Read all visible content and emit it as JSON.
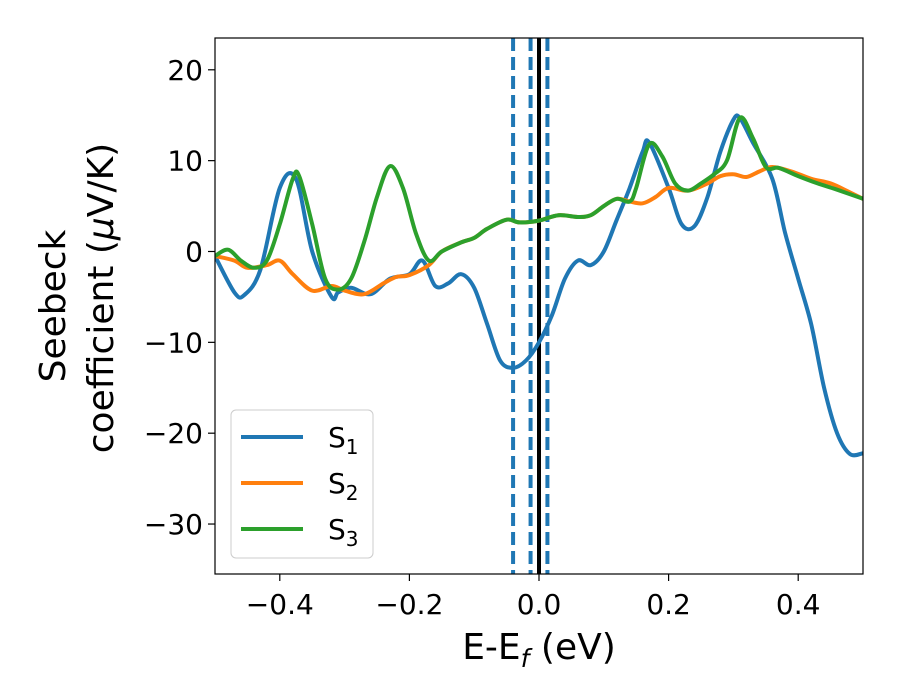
{
  "chart_data": {
    "type": "line",
    "title": "",
    "xlabel": {
      "main": "E-E",
      "sub": "f",
      "suffix": " (eV)"
    },
    "ylabel": {
      "line1": "Seebeck",
      "line2": "coefficient  (",
      "mu": "μ",
      "line2_suffix": "V/K)"
    },
    "xlim": [
      -0.5,
      0.5
    ],
    "ylim": [
      -35.5,
      23.5
    ],
    "xticks": [
      -0.4,
      -0.2,
      0.0,
      0.2,
      0.4
    ],
    "xtick_labels": [
      "−0.4",
      "−0.2",
      "0.0",
      "0.2",
      "0.4"
    ],
    "yticks": [
      20,
      10,
      0,
      -10,
      -20,
      -30
    ],
    "ytick_labels": [
      "20",
      "10",
      "0",
      "−10",
      "−20",
      "−30"
    ],
    "grid": false,
    "legend_position": "lower-left",
    "vlines": [
      {
        "x": 0.0,
        "style": "solid",
        "color": "#000000"
      },
      {
        "x": -0.04,
        "style": "dashed",
        "color": "#1f77b4"
      },
      {
        "x": -0.013,
        "style": "dashed",
        "color": "#1f77b4"
      },
      {
        "x": 0.013,
        "style": "dashed",
        "color": "#1f77b4"
      }
    ],
    "series": [
      {
        "name": "S",
        "subscript": "1",
        "color": "#1f77b4",
        "x": [
          -0.5,
          -0.47,
          -0.455,
          -0.43,
          -0.4,
          -0.375,
          -0.35,
          -0.32,
          -0.31,
          -0.29,
          -0.26,
          -0.23,
          -0.2,
          -0.18,
          -0.16,
          -0.14,
          -0.12,
          -0.1,
          -0.08,
          -0.06,
          -0.04,
          -0.02,
          0.0,
          0.02,
          0.04,
          0.06,
          0.08,
          0.1,
          0.12,
          0.14,
          0.16,
          0.17,
          0.2,
          0.22,
          0.24,
          0.26,
          0.28,
          0.3,
          0.31,
          0.33,
          0.36,
          0.38,
          0.4,
          0.42,
          0.44,
          0.46,
          0.48,
          0.5
        ],
        "values": [
          -0.5,
          -4.5,
          -4.8,
          -2,
          7,
          8,
          0,
          -5,
          -4.5,
          -4,
          -4.7,
          -3,
          -2.5,
          -1,
          -3.8,
          -3.5,
          -2.5,
          -4,
          -8,
          -12,
          -12.8,
          -12,
          -10,
          -7,
          -3,
          -1,
          -1.5,
          0,
          3.5,
          7,
          11,
          12,
          7,
          3,
          2.8,
          6,
          11,
          14.5,
          14.7,
          12,
          8,
          2,
          -3,
          -8,
          -15,
          -20,
          -22.3,
          -22.2
        ]
      },
      {
        "name": "S",
        "subscript": "2",
        "color": "#ff7f0e",
        "x": [
          -0.5,
          -0.47,
          -0.45,
          -0.42,
          -0.4,
          -0.38,
          -0.35,
          -0.32,
          -0.3,
          -0.27,
          -0.24,
          -0.22,
          -0.2,
          -0.17,
          -0.15,
          -0.12,
          -0.1,
          -0.08,
          -0.05,
          -0.03,
          0.0,
          0.03,
          0.06,
          0.08,
          0.1,
          0.12,
          0.14,
          0.16,
          0.18,
          0.2,
          0.23,
          0.26,
          0.28,
          0.3,
          0.32,
          0.34,
          0.36,
          0.39,
          0.42,
          0.45,
          0.48,
          0.5
        ],
        "values": [
          -0.5,
          -1,
          -1.8,
          -1.5,
          -1,
          -2.5,
          -4.3,
          -3.8,
          -4.3,
          -4.7,
          -3.5,
          -2.8,
          -2.6,
          -1.5,
          0,
          1,
          1.5,
          2.5,
          3.5,
          3.2,
          3.4,
          4,
          3.8,
          4,
          5,
          5.8,
          5.5,
          5.3,
          6,
          7,
          6.7,
          7.5,
          8.3,
          8.5,
          8.2,
          8.8,
          9.3,
          8.8,
          8,
          7.5,
          6.5,
          5.8
        ]
      },
      {
        "name": "S",
        "subscript": "3",
        "color": "#2ca02c",
        "x": [
          -0.5,
          -0.48,
          -0.46,
          -0.44,
          -0.42,
          -0.4,
          -0.38,
          -0.37,
          -0.35,
          -0.33,
          -0.31,
          -0.29,
          -0.27,
          -0.25,
          -0.23,
          -0.21,
          -0.19,
          -0.17,
          -0.15,
          -0.12,
          -0.1,
          -0.08,
          -0.05,
          -0.03,
          0.0,
          0.03,
          0.06,
          0.08,
          0.1,
          0.12,
          0.14,
          0.15,
          0.17,
          0.19,
          0.21,
          0.23,
          0.25,
          0.27,
          0.29,
          0.31,
          0.33,
          0.35,
          0.37,
          0.4,
          0.43,
          0.46,
          0.5
        ],
        "values": [
          -0.5,
          0.2,
          -1,
          -1.8,
          -1,
          3,
          8,
          8.3,
          3,
          -3,
          -4.2,
          -3,
          1,
          6,
          9.4,
          7,
          2,
          -1,
          0,
          1,
          1.5,
          2.5,
          3.5,
          3.2,
          3.4,
          4,
          3.8,
          4,
          5,
          5.8,
          5.5,
          7,
          11.8,
          10.5,
          7.5,
          6.7,
          7.5,
          8.5,
          10,
          14.7,
          12.5,
          9.3,
          9.2,
          8.3,
          7.5,
          6.8,
          5.8
        ]
      }
    ]
  }
}
